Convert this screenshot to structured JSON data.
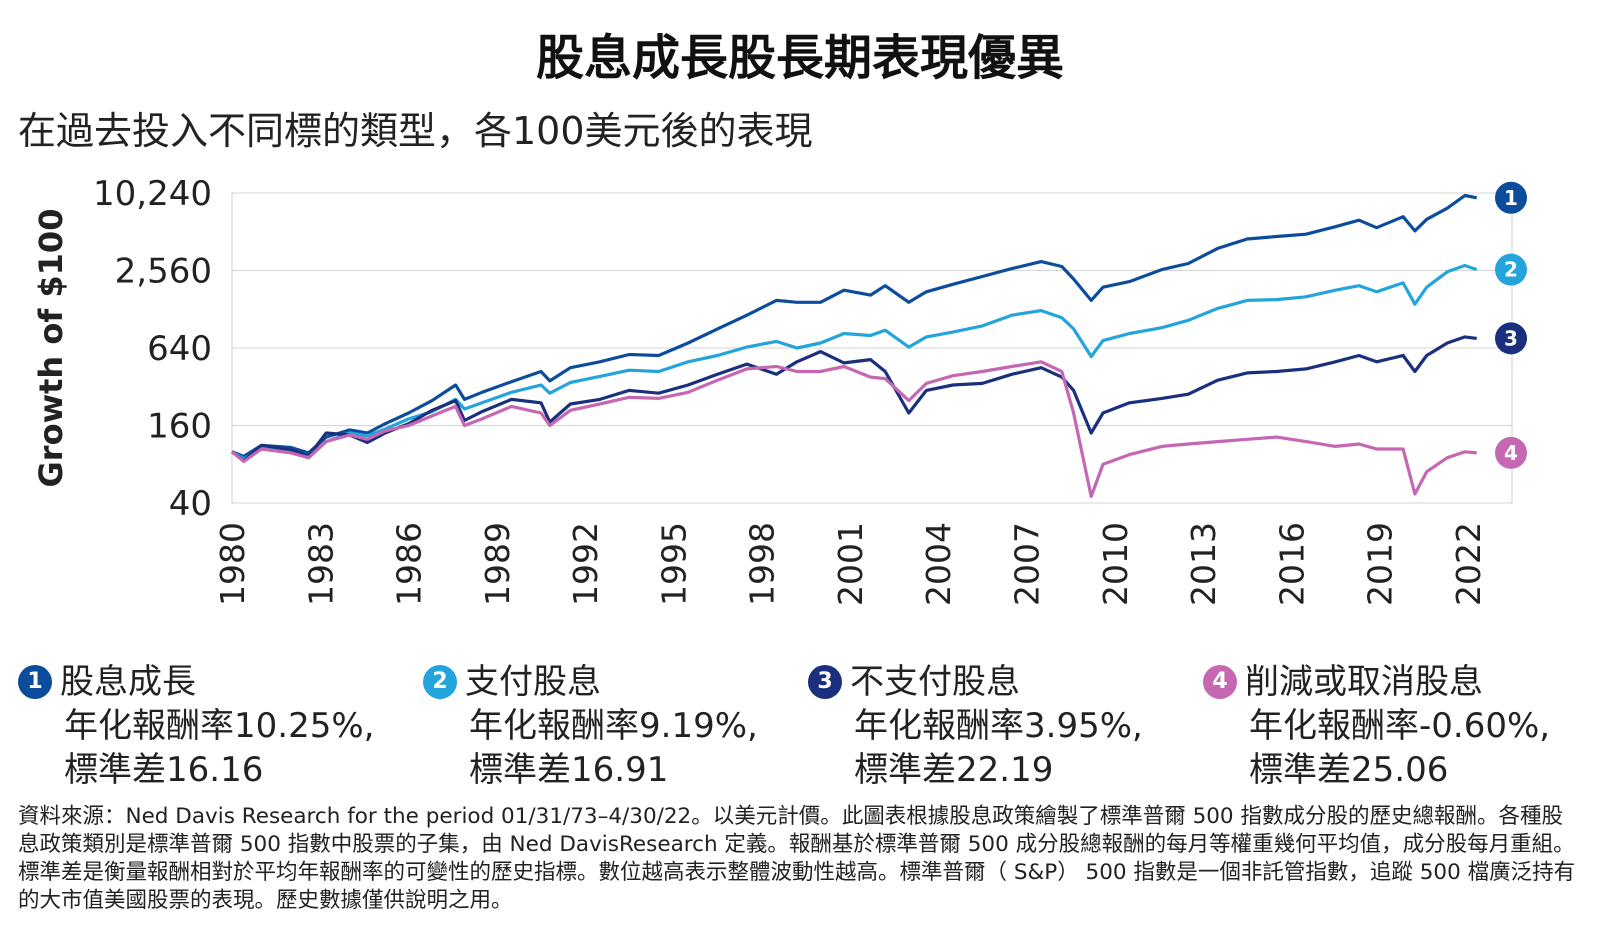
{
  "title": "股息成長股長期表現優異",
  "subtitle": "在過去投入不同標的類型，各100美元後的表現",
  "chart_data": {
    "type": "line",
    "ylabel": "Growth of $100",
    "y_scale": "log2",
    "ylim": [
      40,
      10240
    ],
    "yticks": [
      40,
      160,
      640,
      2560,
      10240
    ],
    "ytick_labels": [
      "40",
      "160",
      "640",
      "2,560",
      "10,240"
    ],
    "xlim": [
      1980,
      2023.5
    ],
    "xticks": [
      1980,
      1983,
      1986,
      1989,
      1992,
      1995,
      1998,
      2001,
      2004,
      2007,
      2010,
      2013,
      2016,
      2019,
      2022
    ],
    "grid": "horizontal",
    "series": [
      {
        "id": "1",
        "color": "#0b4d9c",
        "points": [
          [
            1980,
            100
          ],
          [
            1980.4,
            92
          ],
          [
            1981,
            112
          ],
          [
            1982,
            108
          ],
          [
            1982.6,
            98
          ],
          [
            1983.2,
            130
          ],
          [
            1984,
            148
          ],
          [
            1984.6,
            140
          ],
          [
            1985.2,
            165
          ],
          [
            1986,
            200
          ],
          [
            1986.8,
            250
          ],
          [
            1987.6,
            330
          ],
          [
            1987.9,
            255
          ],
          [
            1988.5,
            290
          ],
          [
            1989.5,
            350
          ],
          [
            1990.5,
            420
          ],
          [
            1990.8,
            355
          ],
          [
            1991.5,
            450
          ],
          [
            1992.5,
            500
          ],
          [
            1993.5,
            570
          ],
          [
            1994.5,
            560
          ],
          [
            1995.5,
            700
          ],
          [
            1996.5,
            900
          ],
          [
            1997.5,
            1150
          ],
          [
            1998.5,
            1500
          ],
          [
            1999.2,
            1450
          ],
          [
            2000,
            1450
          ],
          [
            2000.8,
            1800
          ],
          [
            2001.7,
            1650
          ],
          [
            2002.2,
            1950
          ],
          [
            2003,
            1450
          ],
          [
            2003.6,
            1750
          ],
          [
            2004.5,
            2000
          ],
          [
            2005.5,
            2300
          ],
          [
            2006.5,
            2650
          ],
          [
            2007.5,
            3000
          ],
          [
            2008.2,
            2750
          ],
          [
            2008.6,
            2200
          ],
          [
            2009.2,
            1500
          ],
          [
            2009.6,
            1900
          ],
          [
            2010.5,
            2100
          ],
          [
            2011.6,
            2600
          ],
          [
            2012.5,
            2900
          ],
          [
            2013.5,
            3800
          ],
          [
            2014.5,
            4500
          ],
          [
            2015.5,
            4700
          ],
          [
            2016.5,
            4900
          ],
          [
            2017.5,
            5600
          ],
          [
            2018.3,
            6300
          ],
          [
            2018.9,
            5500
          ],
          [
            2019.8,
            6700
          ],
          [
            2020.2,
            5200
          ],
          [
            2020.6,
            6400
          ],
          [
            2021.3,
            7800
          ],
          [
            2021.9,
            9800
          ],
          [
            2022.3,
            9400
          ]
        ]
      },
      {
        "id": "2",
        "color": "#24a4dd",
        "points": [
          [
            1980,
            100
          ],
          [
            1980.4,
            88
          ],
          [
            1981,
            105
          ],
          [
            1982,
            100
          ],
          [
            1982.6,
            90
          ],
          [
            1983.2,
            120
          ],
          [
            1984,
            140
          ],
          [
            1984.6,
            133
          ],
          [
            1985.2,
            150
          ],
          [
            1986,
            180
          ],
          [
            1986.8,
            205
          ],
          [
            1987.6,
            255
          ],
          [
            1987.9,
            215
          ],
          [
            1988.5,
            240
          ],
          [
            1989.5,
            290
          ],
          [
            1990.5,
            330
          ],
          [
            1990.8,
            285
          ],
          [
            1991.5,
            345
          ],
          [
            1992.5,
            385
          ],
          [
            1993.5,
            430
          ],
          [
            1994.5,
            420
          ],
          [
            1995.5,
            500
          ],
          [
            1996.5,
            560
          ],
          [
            1997.5,
            650
          ],
          [
            1998.5,
            720
          ],
          [
            1999.2,
            640
          ],
          [
            2000,
            700
          ],
          [
            2000.8,
            830
          ],
          [
            2001.7,
            800
          ],
          [
            2002.2,
            880
          ],
          [
            2003,
            650
          ],
          [
            2003.6,
            780
          ],
          [
            2004.5,
            850
          ],
          [
            2005.5,
            950
          ],
          [
            2006.5,
            1150
          ],
          [
            2007.5,
            1250
          ],
          [
            2008.2,
            1100
          ],
          [
            2008.6,
            900
          ],
          [
            2009.2,
            550
          ],
          [
            2009.6,
            730
          ],
          [
            2010.5,
            830
          ],
          [
            2011.6,
            920
          ],
          [
            2012.5,
            1050
          ],
          [
            2013.5,
            1300
          ],
          [
            2014.5,
            1500
          ],
          [
            2015.5,
            1520
          ],
          [
            2016.5,
            1600
          ],
          [
            2017.5,
            1800
          ],
          [
            2018.3,
            1950
          ],
          [
            2018.9,
            1750
          ],
          [
            2019.8,
            2050
          ],
          [
            2020.2,
            1400
          ],
          [
            2020.6,
            1900
          ],
          [
            2021.3,
            2500
          ],
          [
            2021.9,
            2800
          ],
          [
            2022.3,
            2600
          ]
        ]
      },
      {
        "id": "3",
        "color": "#1a2f7e",
        "points": [
          [
            1980,
            100
          ],
          [
            1980.4,
            85
          ],
          [
            1981,
            112
          ],
          [
            1982,
            104
          ],
          [
            1982.6,
            92
          ],
          [
            1983.2,
            140
          ],
          [
            1984,
            135
          ],
          [
            1984.6,
            118
          ],
          [
            1985.2,
            140
          ],
          [
            1986,
            165
          ],
          [
            1986.8,
            210
          ],
          [
            1987.6,
            250
          ],
          [
            1987.9,
            175
          ],
          [
            1988.5,
            205
          ],
          [
            1989.5,
            255
          ],
          [
            1990.5,
            240
          ],
          [
            1990.8,
            170
          ],
          [
            1991.5,
            235
          ],
          [
            1992.5,
            255
          ],
          [
            1993.5,
            300
          ],
          [
            1994.5,
            285
          ],
          [
            1995.5,
            330
          ],
          [
            1996.5,
            400
          ],
          [
            1997.5,
            480
          ],
          [
            1998.5,
            400
          ],
          [
            1999.2,
            500
          ],
          [
            2000,
            600
          ],
          [
            2000.8,
            490
          ],
          [
            2001.7,
            520
          ],
          [
            2002.2,
            420
          ],
          [
            2003,
            200
          ],
          [
            2003.6,
            300
          ],
          [
            2004.5,
            330
          ],
          [
            2005.5,
            340
          ],
          [
            2006.5,
            400
          ],
          [
            2007.5,
            450
          ],
          [
            2008.2,
            380
          ],
          [
            2008.6,
            300
          ],
          [
            2009.2,
            140
          ],
          [
            2009.6,
            200
          ],
          [
            2010.5,
            240
          ],
          [
            2011.6,
            260
          ],
          [
            2012.5,
            280
          ],
          [
            2013.5,
            360
          ],
          [
            2014.5,
            410
          ],
          [
            2015.5,
            420
          ],
          [
            2016.5,
            440
          ],
          [
            2017.5,
            500
          ],
          [
            2018.3,
            560
          ],
          [
            2018.9,
            500
          ],
          [
            2019.8,
            560
          ],
          [
            2020.2,
            420
          ],
          [
            2020.6,
            560
          ],
          [
            2021.3,
            700
          ],
          [
            2021.9,
            780
          ],
          [
            2022.3,
            760
          ]
        ]
      },
      {
        "id": "4",
        "color": "#c567b3",
        "points": [
          [
            1980,
            100
          ],
          [
            1980.4,
            84
          ],
          [
            1981,
            105
          ],
          [
            1982,
            98
          ],
          [
            1982.6,
            90
          ],
          [
            1983.2,
            120
          ],
          [
            1984,
            135
          ],
          [
            1984.6,
            125
          ],
          [
            1985.2,
            145
          ],
          [
            1986,
            160
          ],
          [
            1986.8,
            190
          ],
          [
            1987.6,
            225
          ],
          [
            1987.9,
            160
          ],
          [
            1988.5,
            180
          ],
          [
            1989.5,
            225
          ],
          [
            1990.5,
            200
          ],
          [
            1990.8,
            160
          ],
          [
            1991.5,
            210
          ],
          [
            1992.5,
            235
          ],
          [
            1993.5,
            265
          ],
          [
            1994.5,
            260
          ],
          [
            1995.5,
            290
          ],
          [
            1996.5,
            360
          ],
          [
            1997.5,
            440
          ],
          [
            1998.5,
            460
          ],
          [
            1999.2,
            420
          ],
          [
            2000,
            420
          ],
          [
            2000.8,
            460
          ],
          [
            2001.7,
            380
          ],
          [
            2002.2,
            370
          ],
          [
            2003,
            250
          ],
          [
            2003.6,
            340
          ],
          [
            2004.5,
            390
          ],
          [
            2005.5,
            420
          ],
          [
            2006.5,
            460
          ],
          [
            2007.5,
            500
          ],
          [
            2008.2,
            420
          ],
          [
            2008.6,
            200
          ],
          [
            2009.2,
            45
          ],
          [
            2009.6,
            80
          ],
          [
            2010.5,
            95
          ],
          [
            2011.6,
            110
          ],
          [
            2012.5,
            115
          ],
          [
            2013.5,
            120
          ],
          [
            2014.5,
            125
          ],
          [
            2015.5,
            130
          ],
          [
            2016.5,
            120
          ],
          [
            2017.5,
            110
          ],
          [
            2018.3,
            115
          ],
          [
            2018.9,
            105
          ],
          [
            2019.8,
            105
          ],
          [
            2020.2,
            47
          ],
          [
            2020.6,
            70
          ],
          [
            2021.3,
            90
          ],
          [
            2021.9,
            100
          ],
          [
            2022.3,
            98
          ]
        ]
      }
    ]
  },
  "legend": [
    {
      "num": "1",
      "name": "股息成長",
      "ret": "年化報酬率10.25%,",
      "std": "標準差16.16",
      "color": "#0b4d9c"
    },
    {
      "num": "2",
      "name": "支付股息",
      "ret": "年化報酬率9.19%,",
      "std": "標準差16.91",
      "color": "#24a4dd"
    },
    {
      "num": "3",
      "name": "不支付股息",
      "ret": "年化報酬率3.95%,",
      "std": "標準差22.19",
      "color": "#1a2f7e"
    },
    {
      "num": "4",
      "name": "削減或取消股息",
      "ret": "年化報酬率-0.60%,",
      "std": "標準差25.06",
      "color": "#c567b3"
    }
  ],
  "source": "資料來源：Ned Davis Research for the period 01/31/73–4/30/22。以美元計價。此圖表根據股息政策繪製了標準普爾 500 指數成分股的歷史總報酬。各種股息政策類別是標準普爾 500 指數中股票的子集，由 Ned DavisResearch 定義。報酬基於標準普爾 500 成分股總報酬的每月等權重幾何平均值，成分股每月重組。標準差是衡量報酬相對於平均年報酬率的可變性的歷史指標。數位越高表示整體波動性越高。標準普爾（ S&P） 500 指數是一個非託管指數，追蹤 500 檔廣泛持有的大市值美國股票的表現。歷史數據僅供說明之用。"
}
